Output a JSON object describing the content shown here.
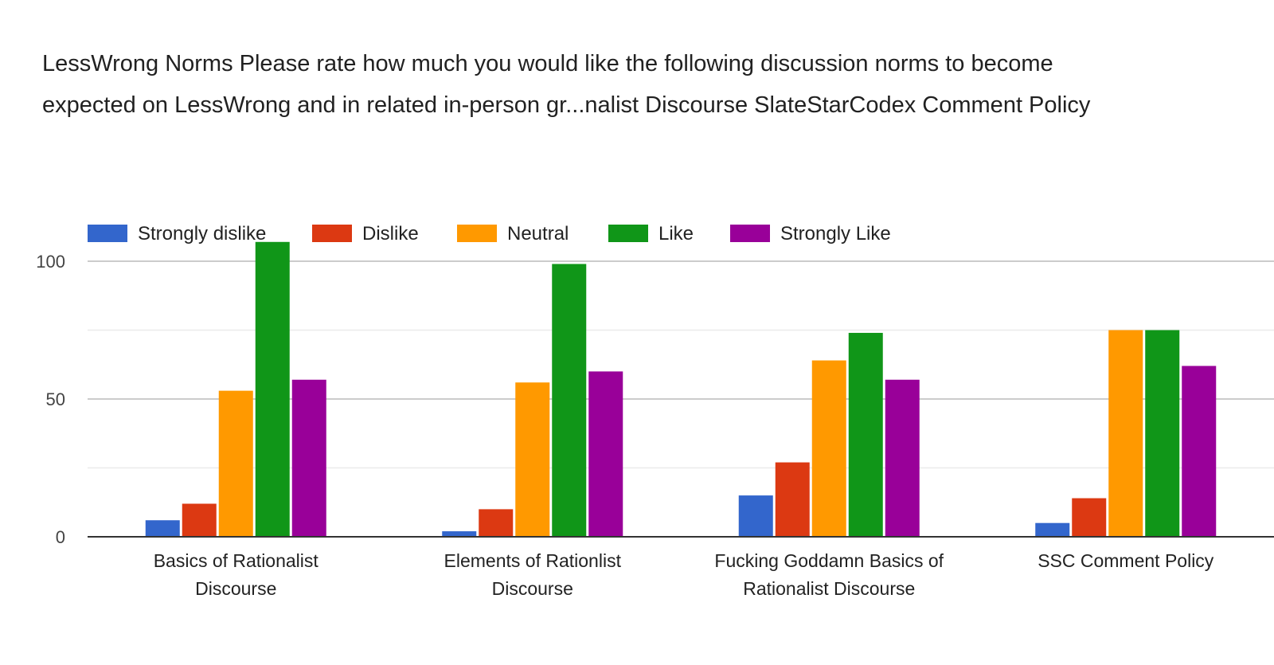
{
  "chart_data": {
    "type": "bar",
    "title_lines": [
      "LessWrong Norms Please rate how much you would like the following discussion norms to become",
      "expected on LessWrong and in related in-person gr...nalist Discourse SlateStarCodex Comment Policy"
    ],
    "categories": [
      [
        "Basics of Rationalist",
        "Discourse"
      ],
      [
        "Elements of Rationlist",
        "Discourse"
      ],
      [
        "Fucking Goddamn Basics of",
        "Rationalist Discourse"
      ],
      [
        "SSC Comment Policy"
      ]
    ],
    "series": [
      {
        "name": "Strongly dislike",
        "color": "#3366cc",
        "values": [
          6,
          2,
          15,
          5
        ]
      },
      {
        "name": "Dislike",
        "color": "#dc3912",
        "values": [
          12,
          10,
          27,
          14
        ]
      },
      {
        "name": "Neutral",
        "color": "#ff9900",
        "values": [
          53,
          56,
          64,
          75
        ]
      },
      {
        "name": "Like",
        "color": "#109618",
        "values": [
          107,
          99,
          74,
          75
        ]
      },
      {
        "name": "Strongly Like",
        "color": "#990099",
        "values": [
          57,
          60,
          57,
          62
        ]
      }
    ],
    "yticks": [
      0,
      50,
      100
    ],
    "ylim": [
      0,
      107
    ],
    "grid": true,
    "legend_position": "top-left",
    "xlabel": "",
    "ylabel": ""
  }
}
